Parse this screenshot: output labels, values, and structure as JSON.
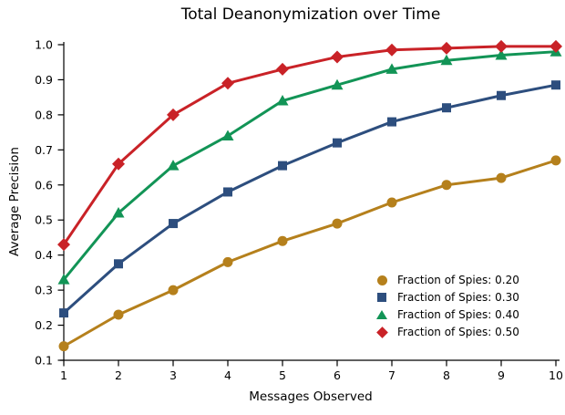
{
  "chart_data": {
    "type": "line",
    "title": "Total Deanonymization over Time",
    "xlabel": "Messages Observed",
    "ylabel": "Average Precision",
    "grid": false,
    "legend_position": "lower right",
    "legend_frame": false,
    "xlim": [
      1,
      10
    ],
    "ylim": [
      0.1,
      1.0
    ],
    "x": [
      1,
      2,
      3,
      4,
      5,
      6,
      7,
      8,
      9,
      10
    ],
    "xtick_labels": [
      "1",
      "2",
      "3",
      "4",
      "5",
      "6",
      "7",
      "8",
      "9",
      "10"
    ],
    "yticks": [
      0.1,
      0.2,
      0.3,
      0.4,
      0.5,
      0.6,
      0.7,
      0.8,
      0.9,
      1.0
    ],
    "ytick_labels": [
      "0.1",
      "0.2",
      "0.3",
      "0.4",
      "0.5",
      "0.6",
      "0.7",
      "0.8",
      "0.9",
      "1.0"
    ],
    "axis_color": "#000000",
    "series": [
      {
        "name": "Fraction of Spies: 0.20",
        "marker": "circle",
        "color": "#B5801C",
        "values": [
          0.14,
          0.23,
          0.3,
          0.38,
          0.44,
          0.49,
          0.55,
          0.6,
          0.62,
          0.67
        ]
      },
      {
        "name": "Fraction of Spies: 0.30",
        "marker": "square",
        "color": "#2D4E7E",
        "values": [
          0.235,
          0.375,
          0.49,
          0.58,
          0.655,
          0.72,
          0.78,
          0.82,
          0.855,
          0.885
        ]
      },
      {
        "name": "Fraction of Spies: 0.40",
        "marker": "triangle",
        "color": "#129456",
        "values": [
          0.33,
          0.52,
          0.655,
          0.74,
          0.84,
          0.885,
          0.93,
          0.955,
          0.97,
          0.98
        ]
      },
      {
        "name": "Fraction of Spies: 0.50",
        "marker": "diamond",
        "color": "#C92227",
        "values": [
          0.43,
          0.66,
          0.8,
          0.89,
          0.93,
          0.965,
          0.985,
          0.99,
          0.995,
          0.995
        ]
      }
    ]
  }
}
